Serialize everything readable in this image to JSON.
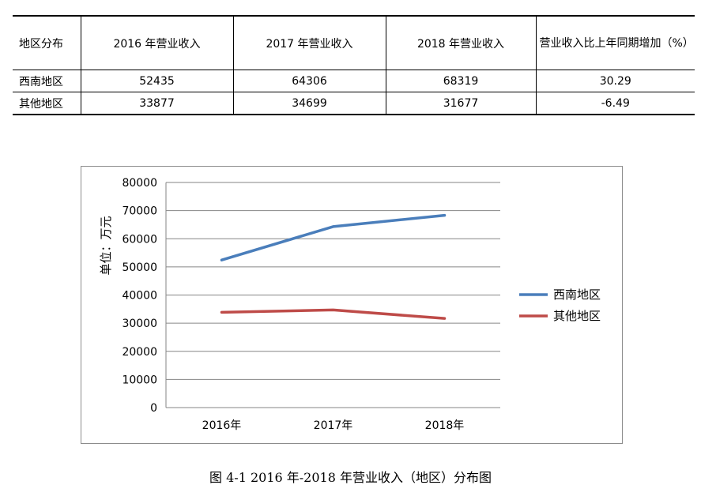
{
  "table": {
    "headers": [
      "地区分布",
      "2016 年营业收入",
      "2017 年营业收入",
      "2018 年营业收入",
      "营业收入比上年同期增加（%）"
    ],
    "rows": [
      [
        "西南地区",
        "52435",
        "64306",
        "68319",
        "30.29"
      ],
      [
        "其他地区",
        "33877",
        "34699",
        "31677",
        "-6.49"
      ]
    ]
  },
  "chart_data": {
    "type": "line",
    "categories": [
      "2016年",
      "2017年",
      "2018年"
    ],
    "series": [
      {
        "name": "西南地区",
        "values": [
          52435,
          64306,
          68319
        ],
        "color": "#4a7ebb"
      },
      {
        "name": "其他地区",
        "values": [
          33877,
          34699,
          31677
        ],
        "color": "#be4b48"
      }
    ],
    "ylabel": "单位：万元",
    "ylim": [
      0,
      80000
    ],
    "yticks": [
      0,
      10000,
      20000,
      30000,
      40000,
      50000,
      60000,
      70000,
      80000
    ],
    "grid": true,
    "legend": "right"
  },
  "caption": "图 4-1 2016 年-2018 年营业收入（地区）分布图"
}
